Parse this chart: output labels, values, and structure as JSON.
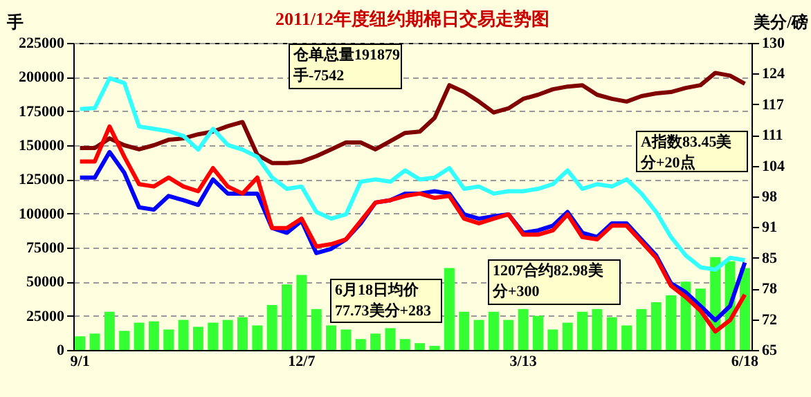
{
  "chart_data": {
    "type": "bar",
    "title": "2011/12年度纽约期棉日交易走势图",
    "ylabel": "手",
    "y2label": "美分/磅",
    "categories": [
      "9/1",
      null,
      null,
      null,
      null,
      null,
      null,
      null,
      null,
      null,
      null,
      null,
      null,
      null,
      null,
      "12/7",
      null,
      null,
      null,
      null,
      null,
      null,
      null,
      null,
      null,
      null,
      null,
      null,
      null,
      null,
      "3/13",
      null,
      null,
      null,
      null,
      null,
      null,
      null,
      null,
      null,
      null,
      null,
      null,
      null,
      null,
      "6/18"
    ],
    "series": [
      {
        "color": "#33ff33",
        "values": [
          10000,
          12000,
          28000,
          14000,
          20000,
          21000,
          15000,
          22000,
          17000,
          20000,
          22000,
          24000,
          18000,
          33000,
          48000,
          55000,
          30000,
          18000,
          15000,
          8000,
          12000,
          16000,
          8000,
          5000,
          3000,
          60000,
          28000,
          22000,
          28000,
          22000,
          30000,
          25000,
          15000,
          20000,
          28000,
          30000,
          24000,
          18000,
          30000,
          35000,
          40000,
          50000,
          45000,
          68000,
          65000,
          60000
        ]
      },
      {
        "type": "line",
        "color": "#800000",
        "values": [
          148000,
          148000,
          155000,
          150000,
          147000,
          150000,
          154000,
          155000,
          158000,
          160000,
          164000,
          167000,
          143000,
          137000,
          137000,
          138000,
          142000,
          147000,
          152000,
          152000,
          147000,
          153000,
          159000,
          160000,
          170000,
          194000,
          189000,
          182000,
          174000,
          177000,
          184000,
          187000,
          191000,
          193000,
          194000,
          187000,
          184000,
          182000,
          186000,
          188000,
          189000,
          192000,
          194000,
          203000,
          201000,
          195000
        ]
      },
      {
        "type": "line",
        "axis": "y2",
        "color": "#33ffff",
        "values": [
          116.0,
          116.2,
          122.5,
          121.5,
          112.3,
          111.8,
          111.3,
          110.3,
          107.4,
          111.8,
          108.4,
          107.4,
          105.9,
          101.5,
          99.1,
          99.6,
          94.2,
          92.8,
          93.7,
          100.6,
          101.1,
          100.6,
          103.0,
          101.1,
          101.5,
          103.5,
          99.1,
          99.6,
          98.1,
          98.6,
          98.6,
          99.1,
          100.1,
          103.0,
          99.1,
          100.1,
          99.6,
          101.1,
          98.1,
          94.2,
          88.9,
          85.0,
          82.5,
          82.0,
          84.5,
          84.0
        ]
      },
      {
        "type": "line",
        "axis": "y2",
        "color": "#0000ff",
        "values": [
          101.5,
          101.5,
          106.9,
          102.5,
          95.2,
          94.7,
          97.6,
          96.7,
          95.7,
          101.1,
          98.1,
          98.1,
          98.1,
          90.8,
          89.8,
          92.3,
          85.5,
          86.4,
          88.4,
          91.8,
          96.2,
          96.7,
          98.1,
          98.1,
          98.6,
          98.1,
          93.7,
          92.8,
          93.3,
          93.7,
          89.8,
          90.3,
          91.3,
          94.2,
          89.8,
          88.9,
          91.8,
          91.8,
          88.4,
          85.0,
          79.1,
          77.2,
          74.3,
          71.3,
          74.3,
          83.5
        ]
      },
      {
        "type": "line",
        "axis": "y2",
        "color": "#ff0000",
        "values": [
          104.9,
          104.9,
          112.3,
          105.9,
          100.1,
          99.6,
          101.5,
          99.6,
          98.6,
          103.5,
          99.6,
          98.1,
          101.5,
          90.8,
          90.8,
          92.8,
          86.9,
          87.4,
          88.4,
          92.3,
          96.2,
          96.7,
          97.6,
          98.1,
          97.2,
          97.6,
          92.8,
          91.8,
          92.8,
          93.7,
          89.4,
          89.4,
          90.3,
          93.7,
          88.9,
          88.4,
          91.3,
          91.3,
          87.9,
          84.5,
          78.6,
          76.2,
          73.3,
          68.9,
          71.3,
          76.7
        ]
      }
    ],
    "ylim": [
      0,
      225000
    ],
    "yticks": [
      0,
      25000,
      50000,
      75000,
      100000,
      125000,
      150000,
      175000,
      200000,
      225000
    ],
    "y2lim": [
      65,
      130
    ],
    "y2ticks": [
      65,
      {
        "value": 71.5,
        "label": "72"
      },
      78,
      {
        "value": 84.5,
        "label": "85"
      },
      91,
      {
        "value": 97.5,
        "label": "98"
      },
      104,
      {
        "value": 110.5,
        "label": "111"
      },
      117,
      {
        "value": 123.5,
        "label": "124"
      },
      130
    ],
    "grid": "y",
    "line_style": "solid",
    "annotations": [
      "仓单总量191879手-7542",
      "A指数83.45美分+20点",
      "1207合约82.98美分+300",
      "6月18日均价77.73美分+283"
    ]
  }
}
